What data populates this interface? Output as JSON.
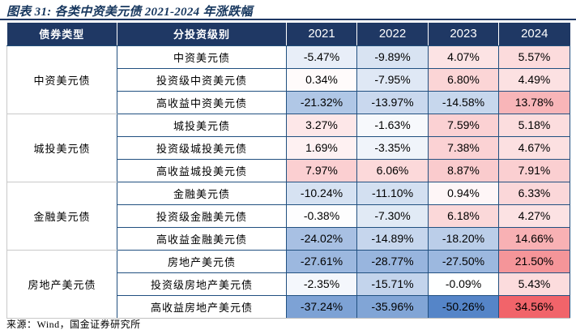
{
  "figure": {
    "source": "来源：Wind，国金证券研究所"
  },
  "chart_data": {
    "type": "heatmap-table",
    "title": "图表 31: 各类中资美元债 2021-2024 年涨跌幅",
    "columns": [
      "债券类型",
      "分投资级别",
      "2021",
      "2022",
      "2023",
      "2024"
    ],
    "unit": "%",
    "value_format": "two-decimals-percent",
    "groups": [
      {
        "type": "中资美元债",
        "rows": [
          {
            "label": "中资美元债",
            "values": [
              -5.47,
              -9.89,
              4.07,
              5.57
            ]
          },
          {
            "label": "投资级中资美元债",
            "values": [
              0.34,
              -7.95,
              6.8,
              4.49
            ]
          },
          {
            "label": "高收益中资美元债",
            "values": [
              -21.32,
              -13.97,
              -14.58,
              13.78
            ]
          }
        ]
      },
      {
        "type": "城投美元债",
        "rows": [
          {
            "label": "城投美元债",
            "values": [
              3.27,
              -1.63,
              7.59,
              5.18
            ]
          },
          {
            "label": "投资级城投美元债",
            "values": [
              1.69,
              -3.35,
              7.38,
              4.67
            ]
          },
          {
            "label": "高收益城投美元债",
            "values": [
              7.97,
              6.06,
              8.87,
              7.91
            ]
          }
        ]
      },
      {
        "type": "金融美元债",
        "rows": [
          {
            "label": "金融美元债",
            "values": [
              -10.24,
              -11.1,
              0.94,
              6.33
            ]
          },
          {
            "label": "投资级金融美元债",
            "values": [
              -0.38,
              -7.3,
              6.18,
              4.27
            ]
          },
          {
            "label": "高收益金融美元债",
            "values": [
              -24.02,
              -14.89,
              -18.2,
              14.66
            ]
          }
        ]
      },
      {
        "type": "房地产美元债",
        "rows": [
          {
            "label": "房地产美元债",
            "values": [
              -27.61,
              -28.77,
              -27.5,
              21.5
            ]
          },
          {
            "label": "投资级房地产美元债",
            "values": [
              -2.35,
              -15.71,
              -0.09,
              5.43
            ]
          },
          {
            "label": "高收益房地产美元债",
            "values": [
              -37.24,
              -35.96,
              -50.26,
              34.56
            ]
          }
        ]
      }
    ],
    "color_scale": {
      "min": -50.26,
      "midpoint": 0,
      "max": 34.56,
      "negative_color": "#5585C8",
      "neutral_color": "#FFFFFF",
      "positive_color": "#F1646A"
    }
  },
  "colors": {
    "header_bg": "#1F3864",
    "header_text": "#FFFFFF",
    "title_color": "#17375E",
    "cell_border": "#215080",
    "group_border": "#C9C9C9"
  }
}
